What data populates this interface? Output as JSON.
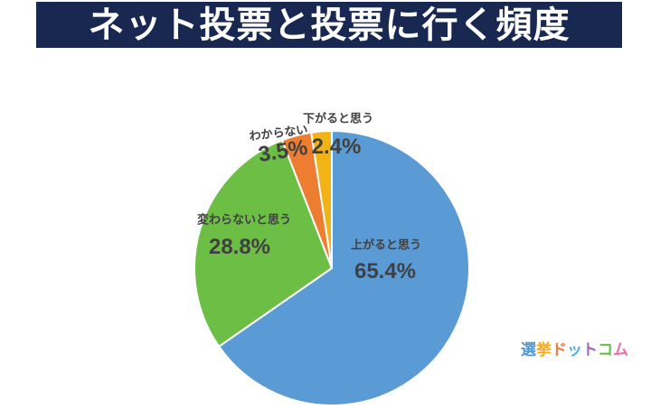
{
  "title": "ネット投票と投票に行く頻度",
  "chart_data": {
    "type": "pie",
    "title": "ネット投票と投票に行く頻度",
    "categories": [
      "上がると思う",
      "変わらないと思う",
      "わからない",
      "下がると思う"
    ],
    "values": [
      65.4,
      28.8,
      3.5,
      2.4
    ],
    "unit": "%",
    "colors": [
      "#5B9BD5",
      "#6CBE45",
      "#ED7D31",
      "#F2B414"
    ],
    "slice_border_color": "#FFFFFF",
    "start_angle": "12-oclock",
    "direction": "clockwise",
    "label_color": "#404040",
    "labels": [
      {
        "name": "上がると思う",
        "pct": "65.4%"
      },
      {
        "name": "変わらないと思う",
        "pct": "28.8%"
      },
      {
        "name": "わからない",
        "pct": "3.5%"
      },
      {
        "name": "下がると思う",
        "pct": "2.4%"
      }
    ]
  },
  "banner": {
    "bg_color": "#192851",
    "text_color": "#FFFFFF"
  },
  "logo": {
    "name": "選挙ドットコム",
    "chars": [
      {
        "char": "選",
        "color": "#4A97D2"
      },
      {
        "char": "挙",
        "color": "#F4A81D"
      },
      {
        "char": "ド",
        "color": "#EF7B3F"
      },
      {
        "char": "ッ",
        "color": "#52AFDC"
      },
      {
        "char": "ト",
        "color": "#9B6BB3"
      },
      {
        "char": "コ",
        "color": "#6CBE45"
      },
      {
        "char": "ム",
        "color": "#ED6FA8"
      }
    ]
  }
}
